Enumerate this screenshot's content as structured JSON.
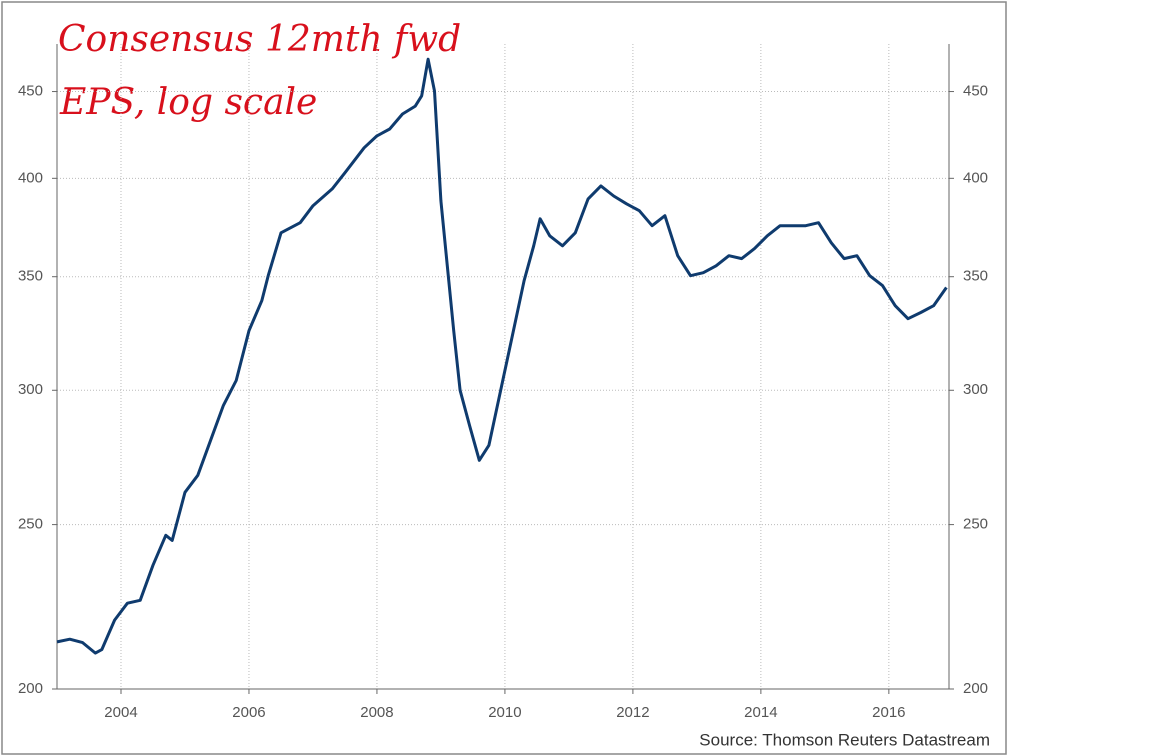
{
  "chart_data": {
    "type": "line",
    "annotation_lines": [
      "Consensus 12mth fwd",
      "EPS, log scale"
    ],
    "source": "Source: Thomson Reuters Datastream",
    "x": [
      2003.0,
      2003.2,
      2003.4,
      2003.6,
      2003.7,
      2003.9,
      2004.1,
      2004.3,
      2004.5,
      2004.7,
      2004.8,
      2005.0,
      2005.2,
      2005.4,
      2005.6,
      2005.8,
      2006.0,
      2006.2,
      2006.3,
      2006.5,
      2006.8,
      2007.0,
      2007.3,
      2007.5,
      2007.8,
      2008.0,
      2008.2,
      2008.4,
      2008.6,
      2008.7,
      2008.8,
      2008.9,
      2009.0,
      2009.1,
      2009.2,
      2009.3,
      2009.45,
      2009.6,
      2009.75,
      2009.9,
      2010.1,
      2010.3,
      2010.45,
      2010.55,
      2010.7,
      2010.9,
      2011.1,
      2011.3,
      2011.5,
      2011.7,
      2011.9,
      2012.1,
      2012.3,
      2012.5,
      2012.7,
      2012.9,
      2013.1,
      2013.3,
      2013.5,
      2013.7,
      2013.9,
      2014.1,
      2014.3,
      2014.5,
      2014.7,
      2014.9,
      2015.1,
      2015.3,
      2015.5,
      2015.7,
      2015.9,
      2016.1,
      2016.3,
      2016.5,
      2016.7,
      2016.9
    ],
    "values": [
      213.2,
      214,
      213,
      210,
      211,
      219.6,
      224.7,
      225.6,
      236.6,
      246.4,
      244.7,
      261.2,
      267.3,
      280.3,
      293.9,
      304,
      325.3,
      338.8,
      350.5,
      371.5,
      376.6,
      385.4,
      394.3,
      403,
      416.9,
      423.7,
      427.7,
      436.5,
      441.2,
      447.4,
      470.2,
      450.3,
      388,
      355.2,
      325.3,
      300,
      285.8,
      272.8,
      278.4,
      295.9,
      320.9,
      348.1,
      365,
      378.6,
      370,
      365,
      371.5,
      389,
      395.9,
      390.5,
      386.4,
      382.8,
      375.1,
      380.2,
      360.1,
      350.5,
      351.9,
      355.2,
      360.1,
      358.7,
      363.6,
      370,
      375.1,
      375.1,
      375.1,
      376.6,
      366.5,
      358.7,
      360.1,
      350.5,
      345.8,
      336.5,
      330.6,
      333.4,
      336.5,
      344.9
    ],
    "color": "#0f3b6e",
    "xlim": [
      2003,
      2016.94
    ],
    "xticks": [
      2004,
      2006,
      2008,
      2010,
      2012,
      2014,
      2016
    ],
    "ylim": [
      200,
      480
    ],
    "yticks": [
      200,
      250,
      300,
      350,
      400,
      450
    ],
    "log_scale": true,
    "grid": true
  }
}
